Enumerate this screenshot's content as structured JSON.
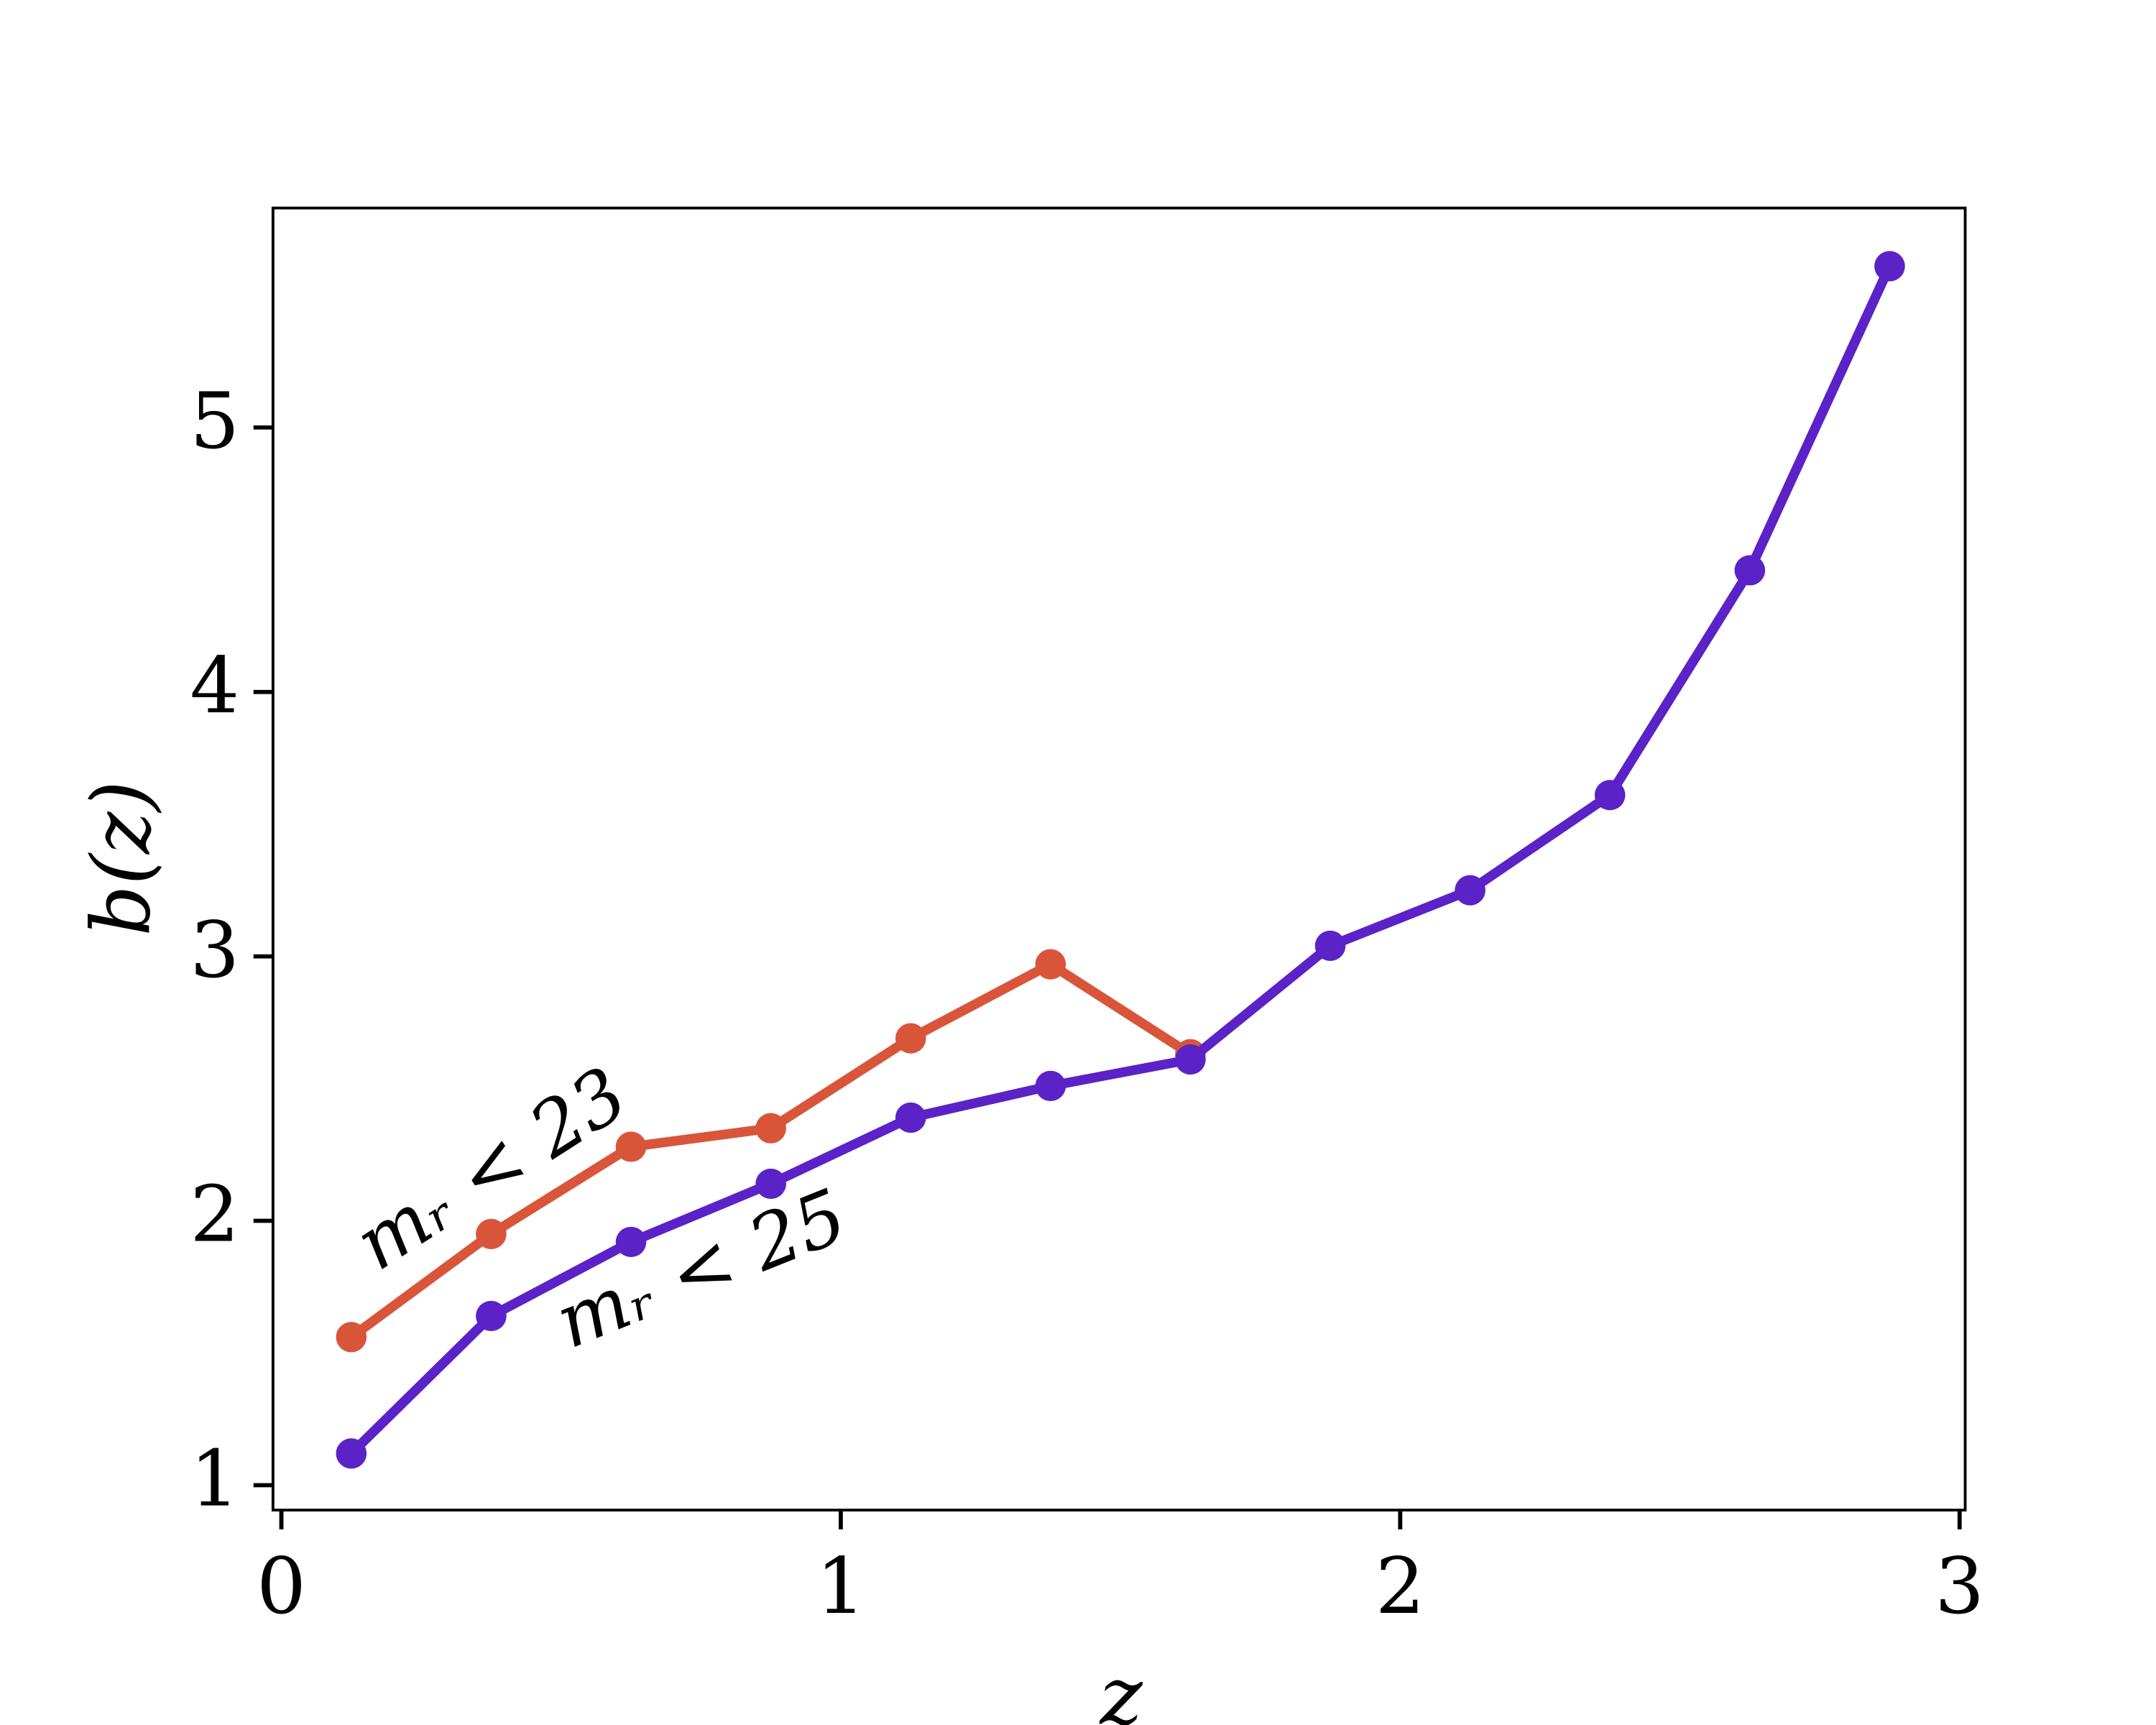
{
  "chart_data": {
    "type": "line",
    "xlabel": "z",
    "ylabel": "b(z)",
    "x": [
      0.125,
      0.375,
      0.625,
      0.875,
      1.125,
      1.375,
      1.625,
      1.875,
      2.125,
      2.375,
      2.625,
      2.875
    ],
    "series": [
      {
        "name": "mᵣ < 23",
        "color": "#d9553a",
        "values": [
          1.56,
          1.95,
          2.28,
          2.35,
          2.69,
          2.97,
          2.63,
          null,
          null,
          null,
          null,
          null
        ]
      },
      {
        "name": "mᵣ < 25",
        "color": "#5b22c8",
        "values": [
          1.12,
          1.64,
          1.92,
          2.14,
          2.39,
          2.51,
          2.61,
          3.04,
          3.25,
          3.61,
          4.46,
          5.61
        ]
      }
    ],
    "xlim": [
      -0.015,
      3.01
    ],
    "ylim": [
      0.906,
      5.83
    ],
    "xticks": [
      0,
      1,
      2,
      3
    ],
    "yticks": [
      1,
      2,
      3,
      4,
      5
    ],
    "grid": false
  }
}
